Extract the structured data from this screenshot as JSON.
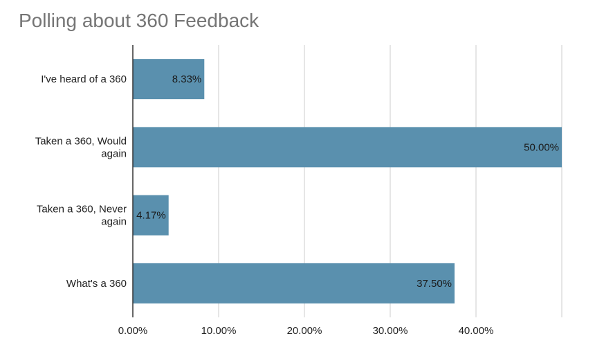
{
  "chart_data": {
    "type": "bar",
    "orientation": "horizontal",
    "title": "Polling about 360 Feedback",
    "xlabel": "",
    "ylabel": "",
    "categories": [
      [
        "I've heard of a 360"
      ],
      [
        "Taken a 360, Would",
        "again"
      ],
      [
        "Taken a 360, Never",
        "again"
      ],
      [
        "What's a 360"
      ]
    ],
    "values": [
      8.33,
      50.0,
      4.17,
      37.5
    ],
    "data_labels": [
      "8.33%",
      "50.00%",
      "4.17%",
      "37.50%"
    ],
    "x_ticks": [
      "0.00%",
      "10.00%",
      "20.00%",
      "30.00%",
      "40.00%"
    ],
    "xlim": [
      0,
      50
    ],
    "grid": "vertical",
    "legend": "none",
    "bar_color": "#5a90ae"
  }
}
